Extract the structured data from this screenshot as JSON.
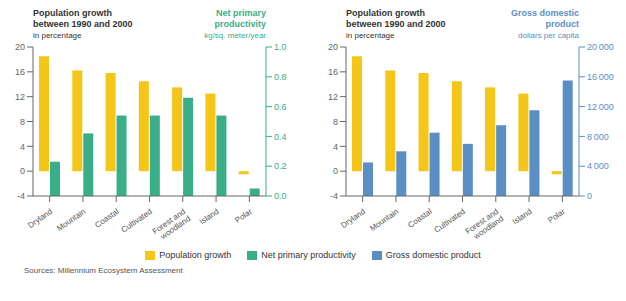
{
  "chart_data": [
    {
      "type": "bar",
      "categories": [
        "Dryland",
        "Mountain",
        "Coastal",
        "Cultivated",
        "Forest and\nwoodland",
        "Island",
        "Polar"
      ],
      "ylabel": "Population growth\nbetween 1990 and 2000\nin percentage",
      "y2label": "Net primary\nproductivity\nkg/sq. meter/year",
      "series": [
        {
          "name": "Population growth",
          "color": "#F5C518",
          "values": [
            18.5,
            16.2,
            15.8,
            14.5,
            13.5,
            12.5,
            -0.5
          ]
        },
        {
          "name": "Net primary productivity",
          "color": "#3AAE88",
          "values": [
            0.23,
            0.42,
            0.54,
            0.54,
            0.66,
            0.54,
            0.05
          ],
          "axis": "y2"
        }
      ],
      "ylim": [
        -4,
        20
      ],
      "yticks": [
        -4,
        0,
        4,
        8,
        12,
        16,
        20
      ],
      "y2lim": [
        0.0,
        1.0
      ],
      "y2ticks": [
        {
          "value": 0,
          "label": "0.0"
        },
        0.2,
        0.4,
        0.6,
        0.8,
        {
          "value": 1,
          "label": "1.0"
        }
      ],
      "legend": "bottom",
      "annotations": [
        "Sources: Millennium Ecosystem Assessment"
      ]
    },
    {
      "type": "bar",
      "categories": [
        "Dryland",
        "Mountain",
        "Coastal",
        "Cultivated",
        "Forest and\nwoodland",
        "Island",
        "Polar"
      ],
      "ylabel": "Population growth\nbetween 1990 and 2000\nin percentage",
      "y2label": "Gross domestic\nproduct\ndollars per capita",
      "series": [
        {
          "name": "Population growth",
          "color": "#F5C518",
          "values": [
            18.5,
            16.2,
            15.8,
            14.5,
            13.5,
            12.5,
            -0.5
          ]
        },
        {
          "name": "Gross domestic product",
          "color": "#5B8EC4",
          "values": [
            4500,
            6000,
            8500,
            7000,
            9500,
            11500,
            15500
          ],
          "axis": "y2"
        }
      ],
      "ylim": [
        -4,
        20
      ],
      "yticks": [
        -4,
        0,
        4,
        8,
        12,
        16,
        20
      ],
      "y2lim": [
        0,
        20000
      ],
      "y2ticks": [
        0,
        {
          "value": 4000,
          "label": "4 000"
        },
        {
          "value": 8000,
          "label": "8 000"
        },
        {
          "value": 12000,
          "label": "12 000"
        },
        {
          "value": 16000,
          "label": "16 000"
        },
        {
          "value": 20000,
          "label": "20 000"
        }
      ],
      "legend": "bottom"
    }
  ]
}
